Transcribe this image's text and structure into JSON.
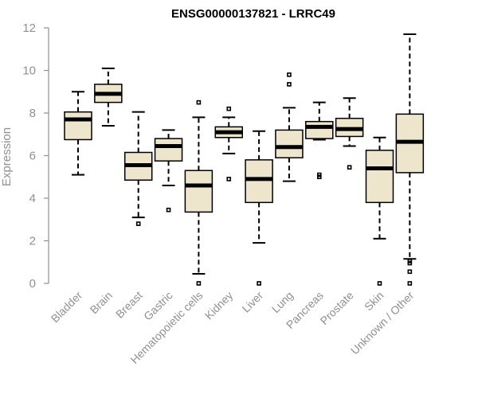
{
  "chart_data": {
    "type": "boxplot",
    "title": "ENSG00000137821 - LRRC49",
    "xlabel": "",
    "ylabel": "Expression",
    "ylim": [
      0,
      12
    ],
    "yticks": [
      0,
      2,
      4,
      6,
      8,
      10,
      12
    ],
    "grid": false,
    "box_color": "#ede5cc",
    "categories": [
      "Bladder",
      "Brain",
      "Breast",
      "Gastric",
      "Hematopoietic cells",
      "Kidney",
      "Liver",
      "Lung",
      "Pancreas",
      "Prostate",
      "Skin",
      "Unknown / Other"
    ],
    "boxes": [
      {
        "category": "Bladder",
        "min": 5.1,
        "q1": 6.75,
        "median": 7.7,
        "q3": 8.05,
        "max": 9.0,
        "outliers": []
      },
      {
        "category": "Brain",
        "min": 7.4,
        "q1": 8.5,
        "median": 8.9,
        "q3": 9.35,
        "max": 10.1,
        "outliers": []
      },
      {
        "category": "Breast",
        "min": 3.1,
        "q1": 4.85,
        "median": 5.55,
        "q3": 6.15,
        "max": 8.05,
        "outliers": [
          2.8
        ]
      },
      {
        "category": "Gastric",
        "min": 4.6,
        "q1": 5.75,
        "median": 6.45,
        "q3": 6.8,
        "max": 7.2,
        "outliers": [
          3.45
        ]
      },
      {
        "category": "Hematopoietic cells",
        "min": 0.45,
        "q1": 3.35,
        "median": 4.6,
        "q3": 5.3,
        "max": 7.8,
        "outliers": [
          8.5,
          0.0
        ]
      },
      {
        "category": "Kidney",
        "min": 6.1,
        "q1": 6.85,
        "median": 7.1,
        "q3": 7.35,
        "max": 7.8,
        "outliers": [
          8.2,
          4.9
        ]
      },
      {
        "category": "Liver",
        "min": 1.9,
        "q1": 3.8,
        "median": 4.9,
        "q3": 5.8,
        "max": 7.15,
        "outliers": [
          0.0
        ]
      },
      {
        "category": "Lung",
        "min": 4.8,
        "q1": 5.9,
        "median": 6.4,
        "q3": 7.2,
        "max": 8.25,
        "outliers": [
          9.35,
          9.8
        ]
      },
      {
        "category": "Pancreas",
        "min": 6.75,
        "q1": 6.8,
        "median": 7.35,
        "q3": 7.6,
        "max": 8.5,
        "outliers": [
          5.0,
          5.1
        ]
      },
      {
        "category": "Prostate",
        "min": 6.45,
        "q1": 6.9,
        "median": 7.25,
        "q3": 7.75,
        "max": 8.7,
        "outliers": [
          5.45
        ]
      },
      {
        "category": "Skin",
        "min": 2.1,
        "q1": 3.8,
        "median": 5.4,
        "q3": 6.25,
        "max": 6.85,
        "outliers": [
          0.0
        ]
      },
      {
        "category": "Unknown / Other",
        "min": 1.15,
        "q1": 5.2,
        "median": 6.65,
        "q3": 7.95,
        "max": 11.7,
        "outliers": [
          1.05,
          0.95,
          0.55,
          0.0
        ]
      }
    ]
  }
}
